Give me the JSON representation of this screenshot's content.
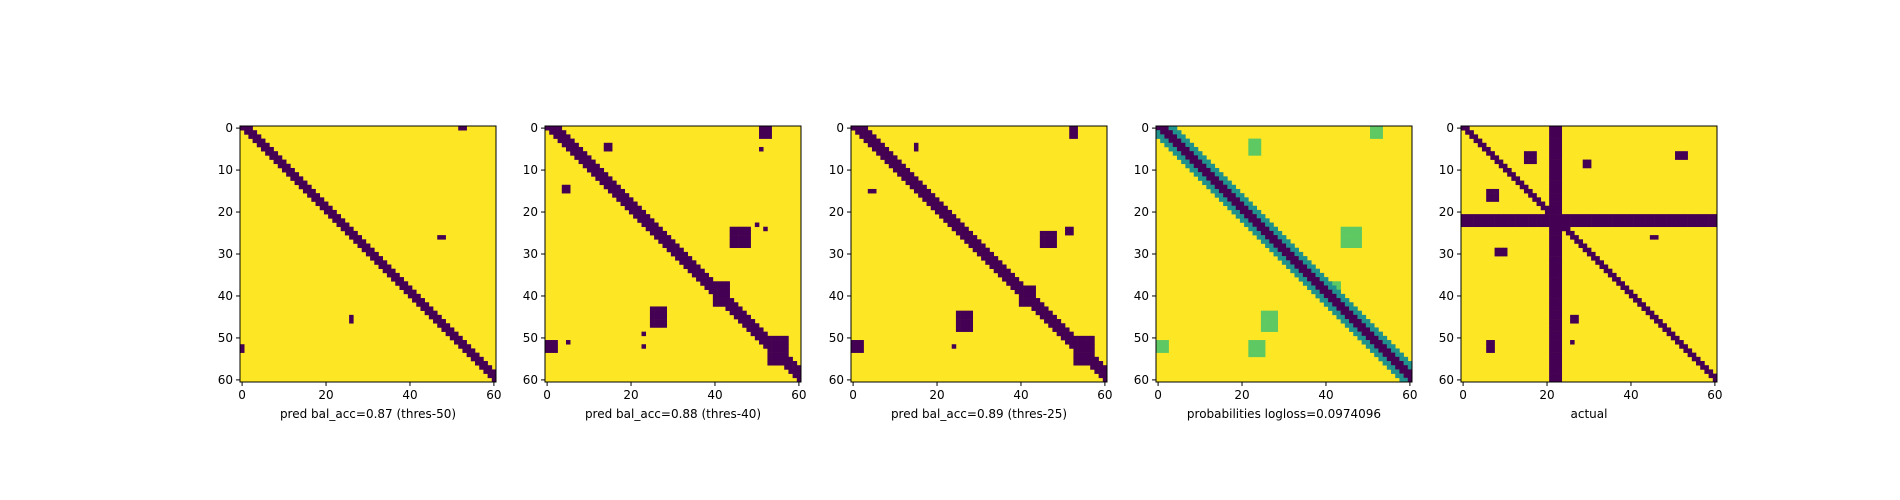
{
  "colors": {
    "high": "#fde725",
    "low": "#440154",
    "mid": "#21918c",
    "midlight": "#5ec962",
    "axis": "#000000"
  },
  "chart_data": [
    {
      "type": "heatmap",
      "xlabel": "pred bal_acc=0.87 (thres-50)",
      "grid_size": 61,
      "xticks": [
        0,
        20,
        40,
        60
      ],
      "yticks": [
        0,
        10,
        20,
        30,
        40,
        50,
        60
      ],
      "xlim": [
        0,
        60
      ],
      "ylim": [
        60,
        0
      ],
      "diagonal_band": {
        "offsets": [
          0,
          1,
          2
        ]
      },
      "blobs": [
        {
          "x": [
            52,
            53
          ],
          "y": [
            0,
            0
          ],
          "v": 0
        },
        {
          "x": [
            47,
            48
          ],
          "y": [
            26,
            26
          ],
          "v": 0
        },
        {
          "x": [
            26,
            26
          ],
          "y": [
            45,
            46
          ],
          "v": 0
        },
        {
          "x": [
            0,
            0
          ],
          "y": [
            52,
            53
          ],
          "v": 0
        }
      ]
    },
    {
      "type": "heatmap",
      "xlabel": "pred bal_acc=0.88 (thres-40)",
      "grid_size": 61,
      "xticks": [
        0,
        20,
        40,
        60
      ],
      "yticks": [
        0,
        10,
        20,
        30,
        40,
        50,
        60
      ],
      "xlim": [
        0,
        60
      ],
      "ylim": [
        60,
        0
      ],
      "diagonal_band": {
        "offsets": [
          0,
          1,
          2,
          3
        ]
      },
      "blobs": [
        {
          "x": [
            51,
            53
          ],
          "y": [
            0,
            2
          ],
          "v": 0
        },
        {
          "x": [
            51,
            51
          ],
          "y": [
            5,
            5
          ],
          "v": 0
        },
        {
          "x": [
            14,
            15
          ],
          "y": [
            4,
            5
          ],
          "v": 0
        },
        {
          "x": [
            4,
            5
          ],
          "y": [
            14,
            15
          ],
          "v": 0
        },
        {
          "x": [
            44,
            48
          ],
          "y": [
            24,
            28
          ],
          "v": 0
        },
        {
          "x": [
            50,
            50
          ],
          "y": [
            23,
            23
          ],
          "v": 0
        },
        {
          "x": [
            52,
            52
          ],
          "y": [
            24,
            24
          ],
          "v": 0
        },
        {
          "x": [
            25,
            28
          ],
          "y": [
            43,
            47
          ],
          "v": 0
        },
        {
          "x": [
            40,
            43
          ],
          "y": [
            37,
            42
          ],
          "v": 0
        },
        {
          "x": [
            23,
            23
          ],
          "y": [
            49,
            49
          ],
          "v": 0
        },
        {
          "x": [
            23,
            23
          ],
          "y": [
            52,
            52
          ],
          "v": 0
        },
        {
          "x": [
            0,
            2
          ],
          "y": [
            51,
            53
          ],
          "v": 0
        },
        {
          "x": [
            5,
            5
          ],
          "y": [
            51,
            51
          ],
          "v": 0
        },
        {
          "x": [
            53,
            57
          ],
          "y": [
            50,
            56
          ],
          "v": 0
        }
      ]
    },
    {
      "type": "heatmap",
      "xlabel": "pred bal_acc=0.89 (thres-25)",
      "grid_size": 61,
      "xticks": [
        0,
        20,
        40,
        60
      ],
      "yticks": [
        0,
        10,
        20,
        30,
        40,
        50,
        60
      ],
      "xlim": [
        0,
        60
      ],
      "ylim": [
        60,
        0
      ],
      "diagonal_band": {
        "offsets": [
          0,
          1,
          2,
          3
        ]
      },
      "blobs": [
        {
          "x": [
            52,
            53
          ],
          "y": [
            0,
            2
          ],
          "v": 0
        },
        {
          "x": [
            15,
            15
          ],
          "y": [
            4,
            5
          ],
          "v": 0
        },
        {
          "x": [
            4,
            5
          ],
          "y": [
            15,
            15
          ],
          "v": 0
        },
        {
          "x": [
            45,
            48
          ],
          "y": [
            25,
            28
          ],
          "v": 0
        },
        {
          "x": [
            51,
            52
          ],
          "y": [
            24,
            25
          ],
          "v": 0
        },
        {
          "x": [
            25,
            28
          ],
          "y": [
            44,
            48
          ],
          "v": 0
        },
        {
          "x": [
            40,
            43
          ],
          "y": [
            38,
            42
          ],
          "v": 0
        },
        {
          "x": [
            24,
            24
          ],
          "y": [
            52,
            52
          ],
          "v": 0
        },
        {
          "x": [
            0,
            2
          ],
          "y": [
            51,
            53
          ],
          "v": 0
        },
        {
          "x": [
            53,
            57
          ],
          "y": [
            50,
            56
          ],
          "v": 0
        }
      ]
    },
    {
      "type": "heatmap",
      "xlabel": "probabilities logloss=0.0974096",
      "grid_size": 61,
      "xticks": [
        0,
        20,
        40,
        60
      ],
      "yticks": [
        0,
        10,
        20,
        30,
        40,
        50,
        60
      ],
      "xlim": [
        0,
        60
      ],
      "ylim": [
        60,
        0
      ],
      "diagonal_band": {
        "offsets": [
          0,
          1,
          2
        ],
        "edge_offsets": [
          -2,
          -1,
          3,
          4
        ]
      },
      "blobs": [
        {
          "x": [
            51,
            53
          ],
          "y": [
            0,
            2
          ],
          "v": 0.5
        },
        {
          "x": [
            6,
            8
          ],
          "y": [
            14,
            16
          ],
          "v": 0.8
        },
        {
          "x": [
            22,
            24
          ],
          "y": [
            3,
            6
          ],
          "v": 0.6
        },
        {
          "x": [
            3,
            6
          ],
          "y": [
            22,
            25
          ],
          "v": 0.85
        },
        {
          "x": [
            44,
            48
          ],
          "y": [
            24,
            28
          ],
          "v": 0.6
        },
        {
          "x": [
            50,
            53
          ],
          "y": [
            21,
            25
          ],
          "v": 0.85
        },
        {
          "x": [
            25,
            28
          ],
          "y": [
            44,
            48
          ],
          "v": 0.6
        },
        {
          "x": [
            13,
            20
          ],
          "y": [
            45,
            48
          ],
          "v": 0.85
        },
        {
          "x": [
            22,
            25
          ],
          "y": [
            51,
            54
          ],
          "v": 0.7
        },
        {
          "x": [
            0,
            2
          ],
          "y": [
            51,
            53
          ],
          "v": 0.6
        },
        {
          "x": [
            40,
            43
          ],
          "y": [
            37,
            42
          ],
          "v": 0.5
        }
      ]
    },
    {
      "type": "heatmap",
      "xlabel": "actual",
      "grid_size": 61,
      "xticks": [
        0,
        20,
        40,
        60
      ],
      "yticks": [
        0,
        10,
        20,
        30,
        40,
        50,
        60
      ],
      "xlim": [
        0,
        60
      ],
      "ylim": [
        60,
        0
      ],
      "diagonal_band": {
        "offsets": [
          0,
          1
        ]
      },
      "stripes": {
        "rows": [
          21,
          22,
          23
        ],
        "cols": [
          21,
          22,
          23
        ]
      },
      "blobs": [
        {
          "x": [
            29,
            30
          ],
          "y": [
            8,
            9
          ],
          "v": 0
        },
        {
          "x": [
            51,
            53
          ],
          "y": [
            6,
            7
          ],
          "v": 0
        },
        {
          "x": [
            8,
            10
          ],
          "y": [
            29,
            30
          ],
          "v": 0
        },
        {
          "x": [
            6,
            8
          ],
          "y": [
            15,
            17
          ],
          "v": 0
        },
        {
          "x": [
            15,
            17
          ],
          "y": [
            6,
            8
          ],
          "v": 0
        },
        {
          "x": [
            45,
            46
          ],
          "y": [
            26,
            26
          ],
          "v": 0
        },
        {
          "x": [
            26,
            27
          ],
          "y": [
            45,
            46
          ],
          "v": 0
        },
        {
          "x": [
            26,
            26
          ],
          "y": [
            51,
            51
          ],
          "v": 0
        },
        {
          "x": [
            6,
            7
          ],
          "y": [
            51,
            53
          ],
          "v": 0
        }
      ]
    }
  ]
}
